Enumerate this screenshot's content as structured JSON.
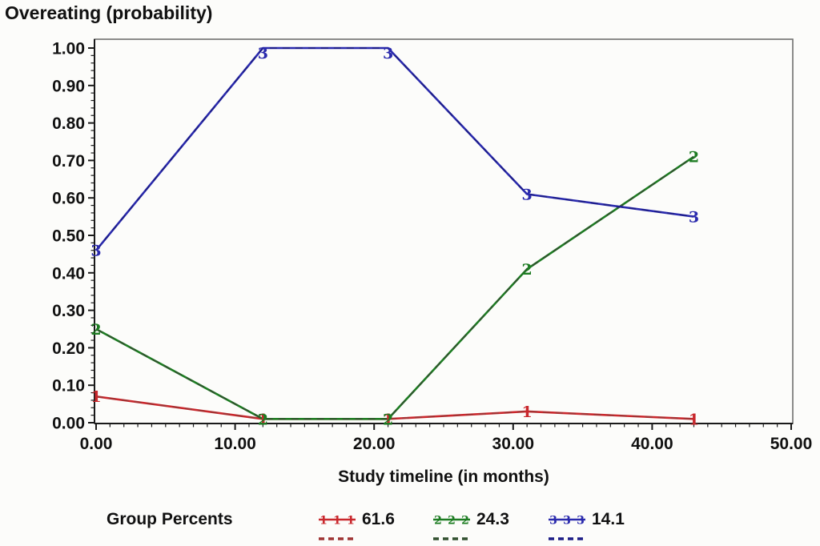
{
  "chart_data": {
    "type": "line",
    "title": "Overeating (probability)",
    "xlabel": "Study timeline (in months)",
    "ylabel": "Overeating (probability)",
    "legend_label": "Group Percents",
    "legend_position": "bottom",
    "grid": false,
    "xlim": [
      0,
      50
    ],
    "ylim": [
      0,
      1
    ],
    "x_tick_values": [
      0,
      10,
      20,
      30,
      40,
      50
    ],
    "x_tick_labels": [
      "0.00",
      "10.00",
      "20.00",
      "30.00",
      "40.00",
      "50.00"
    ],
    "x_minor_step": 1,
    "y_tick_values": [
      0,
      0.1,
      0.2,
      0.3,
      0.4,
      0.5,
      0.6,
      0.7,
      0.8,
      0.9,
      1
    ],
    "y_tick_labels": [
      "0.00",
      "0.10",
      "0.20",
      "0.30",
      "0.40",
      "0.50",
      "0.60",
      "0.70",
      "0.80",
      "0.90",
      "1.00"
    ],
    "y_minor_step": 0.02,
    "colors": {
      "axis": "#1a1a1a",
      "frame": "#6f6f6f",
      "text": "#111111",
      "background": "#fcfcfa"
    },
    "x_shared": [
      0,
      12,
      21,
      31,
      43
    ],
    "series": [
      {
        "marker": "1",
        "percent": "61.6",
        "color": "#c9282d",
        "dash_color": "#9e3434",
        "x": [
          0,
          12,
          21,
          31,
          43
        ],
        "y": [
          0.07,
          0.01,
          0.01,
          0.03,
          0.01
        ]
      },
      {
        "marker": "2",
        "percent": "24.3",
        "color": "#1d7c22",
        "dash_color": "#32502f",
        "x": [
          0,
          12,
          21,
          31,
          43
        ],
        "y": [
          0.25,
          0.01,
          0.01,
          0.41,
          0.71
        ]
      },
      {
        "marker": "3",
        "percent": "14.1",
        "color": "#2a2aad",
        "dash_color": "#1d1d86",
        "x": [
          0,
          12,
          21,
          31,
          43
        ],
        "y": [
          0.46,
          1.0,
          1.0,
          0.61,
          0.55
        ]
      }
    ]
  }
}
